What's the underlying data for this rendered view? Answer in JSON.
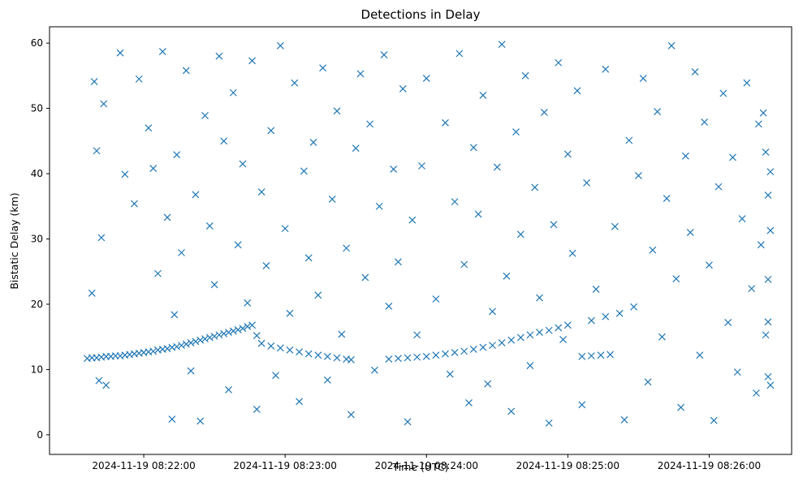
{
  "chart_data": {
    "type": "scatter",
    "title": "Detections in Delay",
    "xlabel": "Time (UTC)",
    "ylabel": "Bistatic Delay (km)",
    "x_range": [
      "2024-11-19 08:21:20",
      "2024-11-19 08:26:35"
    ],
    "ylim": [
      -3,
      62.5
    ],
    "x_ticks": [
      "2024-11-19 08:22:00",
      "2024-11-19 08:23:00",
      "2024-11-19 08:24:00",
      "2024-11-19 08:25:00",
      "2024-11-19 08:26:00"
    ],
    "y_ticks": [
      0,
      10,
      20,
      30,
      40,
      50,
      60
    ],
    "marker": "x",
    "color": "#1f77b4",
    "grid": false,
    "series": [
      {
        "points": [
          [
            "2024-11-19 08:21:36",
            11.7
          ],
          [
            "2024-11-19 08:21:38",
            11.8
          ],
          [
            "2024-11-19 08:21:40",
            11.8
          ],
          [
            "2024-11-19 08:21:42",
            11.9
          ],
          [
            "2024-11-19 08:21:44",
            12.0
          ],
          [
            "2024-11-19 08:21:46",
            12.0
          ],
          [
            "2024-11-19 08:21:48",
            12.1
          ],
          [
            "2024-11-19 08:21:50",
            12.1
          ],
          [
            "2024-11-19 08:21:52",
            12.2
          ],
          [
            "2024-11-19 08:21:54",
            12.3
          ],
          [
            "2024-11-19 08:21:56",
            12.4
          ],
          [
            "2024-11-19 08:21:58",
            12.5
          ],
          [
            "2024-11-19 08:22:00",
            12.6
          ],
          [
            "2024-11-19 08:22:02",
            12.7
          ],
          [
            "2024-11-19 08:22:04",
            12.8
          ],
          [
            "2024-11-19 08:22:06",
            13.0
          ],
          [
            "2024-11-19 08:22:08",
            13.1
          ],
          [
            "2024-11-19 08:22:10",
            13.2
          ],
          [
            "2024-11-19 08:22:12",
            13.4
          ],
          [
            "2024-11-19 08:22:14",
            13.5
          ],
          [
            "2024-11-19 08:22:16",
            13.7
          ],
          [
            "2024-11-19 08:22:18",
            13.9
          ],
          [
            "2024-11-19 08:22:20",
            14.1
          ],
          [
            "2024-11-19 08:22:22",
            14.3
          ],
          [
            "2024-11-19 08:22:24",
            14.5
          ],
          [
            "2024-11-19 08:22:26",
            14.7
          ],
          [
            "2024-11-19 08:22:28",
            14.9
          ],
          [
            "2024-11-19 08:22:30",
            15.1
          ],
          [
            "2024-11-19 08:22:32",
            15.3
          ],
          [
            "2024-11-19 08:22:34",
            15.5
          ],
          [
            "2024-11-19 08:22:36",
            15.7
          ],
          [
            "2024-11-19 08:22:38",
            15.9
          ],
          [
            "2024-11-19 08:22:40",
            16.1
          ],
          [
            "2024-11-19 08:22:42",
            16.3
          ],
          [
            "2024-11-19 08:22:44",
            16.6
          ],
          [
            "2024-11-19 08:22:46",
            16.8
          ],
          [
            "2024-11-19 08:22:48",
            15.2
          ],
          [
            "2024-11-19 08:22:50",
            14.0
          ],
          [
            "2024-11-19 08:22:54",
            13.6
          ],
          [
            "2024-11-19 08:22:58",
            13.3
          ],
          [
            "2024-11-19 08:23:02",
            13.0
          ],
          [
            "2024-11-19 08:23:06",
            12.7
          ],
          [
            "2024-11-19 08:23:10",
            12.4
          ],
          [
            "2024-11-19 08:23:14",
            12.2
          ],
          [
            "2024-11-19 08:23:18",
            12.0
          ],
          [
            "2024-11-19 08:23:22",
            11.8
          ],
          [
            "2024-11-19 08:23:26",
            11.6
          ],
          [
            "2024-11-19 08:23:28",
            11.5
          ],
          [
            "2024-11-19 08:23:44",
            11.6
          ],
          [
            "2024-11-19 08:23:48",
            11.7
          ],
          [
            "2024-11-19 08:23:52",
            11.8
          ],
          [
            "2024-11-19 08:23:56",
            11.9
          ],
          [
            "2024-11-19 08:24:00",
            12.0
          ],
          [
            "2024-11-19 08:24:04",
            12.2
          ],
          [
            "2024-11-19 08:24:08",
            12.4
          ],
          [
            "2024-11-19 08:24:12",
            12.6
          ],
          [
            "2024-11-19 08:24:16",
            12.8
          ],
          [
            "2024-11-19 08:24:20",
            13.1
          ],
          [
            "2024-11-19 08:24:24",
            13.4
          ],
          [
            "2024-11-19 08:24:28",
            13.7
          ],
          [
            "2024-11-19 08:24:32",
            14.1
          ],
          [
            "2024-11-19 08:24:36",
            14.5
          ],
          [
            "2024-11-19 08:24:40",
            14.9
          ],
          [
            "2024-11-19 08:24:44",
            15.3
          ],
          [
            "2024-11-19 08:24:48",
            15.7
          ],
          [
            "2024-11-19 08:24:52",
            16.0
          ],
          [
            "2024-11-19 08:24:56",
            16.4
          ],
          [
            "2024-11-19 08:25:00",
            16.8
          ],
          [
            "2024-11-19 08:25:06",
            12.0
          ],
          [
            "2024-11-19 08:25:10",
            12.1
          ],
          [
            "2024-11-19 08:25:14",
            12.2
          ],
          [
            "2024-11-19 08:25:18",
            12.3
          ],
          [
            "2024-11-19 08:25:10",
            17.5
          ],
          [
            "2024-11-19 08:25:16",
            18.1
          ],
          [
            "2024-11-19 08:25:22",
            18.6
          ],
          [
            "2024-11-19 08:21:38",
            21.7
          ],
          [
            "2024-11-19 08:21:39",
            54.1
          ],
          [
            "2024-11-19 08:21:40",
            43.5
          ],
          [
            "2024-11-19 08:21:41",
            8.3
          ],
          [
            "2024-11-19 08:21:42",
            30.2
          ],
          [
            "2024-11-19 08:21:43",
            50.7
          ],
          [
            "2024-11-19 08:21:44",
            7.6
          ],
          [
            "2024-11-19 08:21:50",
            58.5
          ],
          [
            "2024-11-19 08:21:52",
            39.9
          ],
          [
            "2024-11-19 08:21:56",
            35.4
          ],
          [
            "2024-11-19 08:21:58",
            54.5
          ],
          [
            "2024-11-19 08:22:02",
            47.0
          ],
          [
            "2024-11-19 08:22:04",
            40.8
          ],
          [
            "2024-11-19 08:22:06",
            24.7
          ],
          [
            "2024-11-19 08:22:08",
            58.7
          ],
          [
            "2024-11-19 08:22:10",
            33.3
          ],
          [
            "2024-11-19 08:22:12",
            2.4
          ],
          [
            "2024-11-19 08:22:13",
            18.4
          ],
          [
            "2024-11-19 08:22:14",
            42.9
          ],
          [
            "2024-11-19 08:22:16",
            27.9
          ],
          [
            "2024-11-19 08:22:18",
            55.8
          ],
          [
            "2024-11-19 08:22:20",
            9.8
          ],
          [
            "2024-11-19 08:22:22",
            36.8
          ],
          [
            "2024-11-19 08:22:24",
            2.1
          ],
          [
            "2024-11-19 08:22:26",
            48.9
          ],
          [
            "2024-11-19 08:22:28",
            32.0
          ],
          [
            "2024-11-19 08:22:30",
            23.0
          ],
          [
            "2024-11-19 08:22:32",
            58.0
          ],
          [
            "2024-11-19 08:22:34",
            45.0
          ],
          [
            "2024-11-19 08:22:36",
            6.9
          ],
          [
            "2024-11-19 08:22:38",
            52.4
          ],
          [
            "2024-11-19 08:22:40",
            29.1
          ],
          [
            "2024-11-19 08:22:42",
            41.5
          ],
          [
            "2024-11-19 08:22:44",
            20.2
          ],
          [
            "2024-11-19 08:22:46",
            57.3
          ],
          [
            "2024-11-19 08:22:48",
            3.9
          ],
          [
            "2024-11-19 08:22:50",
            37.2
          ],
          [
            "2024-11-19 08:22:52",
            25.9
          ],
          [
            "2024-11-19 08:22:54",
            46.6
          ],
          [
            "2024-11-19 08:22:56",
            9.1
          ],
          [
            "2024-11-19 08:22:58",
            59.6
          ],
          [
            "2024-11-19 08:23:00",
            31.6
          ],
          [
            "2024-11-19 08:23:02",
            18.6
          ],
          [
            "2024-11-19 08:23:04",
            53.9
          ],
          [
            "2024-11-19 08:23:06",
            5.1
          ],
          [
            "2024-11-19 08:23:08",
            40.4
          ],
          [
            "2024-11-19 08:23:10",
            27.1
          ],
          [
            "2024-11-19 08:23:12",
            44.8
          ],
          [
            "2024-11-19 08:23:14",
            21.4
          ],
          [
            "2024-11-19 08:23:16",
            56.2
          ],
          [
            "2024-11-19 08:23:18",
            8.4
          ],
          [
            "2024-11-19 08:23:20",
            36.1
          ],
          [
            "2024-11-19 08:23:22",
            49.6
          ],
          [
            "2024-11-19 08:23:24",
            15.4
          ],
          [
            "2024-11-19 08:23:26",
            28.6
          ],
          [
            "2024-11-19 08:23:28",
            3.1
          ],
          [
            "2024-11-19 08:23:30",
            43.9
          ],
          [
            "2024-11-19 08:23:32",
            55.3
          ],
          [
            "2024-11-19 08:23:34",
            24.1
          ],
          [
            "2024-11-19 08:23:36",
            47.6
          ],
          [
            "2024-11-19 08:23:38",
            9.9
          ],
          [
            "2024-11-19 08:23:40",
            35.0
          ],
          [
            "2024-11-19 08:23:42",
            58.2
          ],
          [
            "2024-11-19 08:23:44",
            19.7
          ],
          [
            "2024-11-19 08:23:46",
            40.7
          ],
          [
            "2024-11-19 08:23:48",
            26.5
          ],
          [
            "2024-11-19 08:23:50",
            53.0
          ],
          [
            "2024-11-19 08:23:52",
            2.0
          ],
          [
            "2024-11-19 08:23:54",
            32.9
          ],
          [
            "2024-11-19 08:23:56",
            15.3
          ],
          [
            "2024-11-19 08:23:58",
            41.2
          ],
          [
            "2024-11-19 08:24:00",
            54.6
          ],
          [
            "2024-11-19 08:24:04",
            20.8
          ],
          [
            "2024-11-19 08:24:08",
            47.8
          ],
          [
            "2024-11-19 08:24:10",
            9.3
          ],
          [
            "2024-11-19 08:24:12",
            35.7
          ],
          [
            "2024-11-19 08:24:14",
            58.4
          ],
          [
            "2024-11-19 08:24:16",
            26.1
          ],
          [
            "2024-11-19 08:24:18",
            4.9
          ],
          [
            "2024-11-19 08:24:20",
            44.0
          ],
          [
            "2024-11-19 08:24:22",
            33.8
          ],
          [
            "2024-11-19 08:24:24",
            52.0
          ],
          [
            "2024-11-19 08:24:26",
            7.8
          ],
          [
            "2024-11-19 08:24:28",
            18.9
          ],
          [
            "2024-11-19 08:24:30",
            41.0
          ],
          [
            "2024-11-19 08:24:32",
            59.8
          ],
          [
            "2024-11-19 08:24:34",
            24.3
          ],
          [
            "2024-11-19 08:24:36",
            3.6
          ],
          [
            "2024-11-19 08:24:38",
            46.4
          ],
          [
            "2024-11-19 08:24:40",
            30.7
          ],
          [
            "2024-11-19 08:24:42",
            55.0
          ],
          [
            "2024-11-19 08:24:44",
            10.6
          ],
          [
            "2024-11-19 08:24:46",
            37.9
          ],
          [
            "2024-11-19 08:24:48",
            21.0
          ],
          [
            "2024-11-19 08:24:50",
            49.4
          ],
          [
            "2024-11-19 08:24:52",
            1.8
          ],
          [
            "2024-11-19 08:24:54",
            32.2
          ],
          [
            "2024-11-19 08:24:56",
            57.0
          ],
          [
            "2024-11-19 08:24:58",
            14.6
          ],
          [
            "2024-11-19 08:25:00",
            43.0
          ],
          [
            "2024-11-19 08:25:02",
            27.8
          ],
          [
            "2024-11-19 08:25:04",
            52.7
          ],
          [
            "2024-11-19 08:25:06",
            4.6
          ],
          [
            "2024-11-19 08:25:08",
            38.6
          ],
          [
            "2024-11-19 08:25:12",
            22.3
          ],
          [
            "2024-11-19 08:25:16",
            56.0
          ],
          [
            "2024-11-19 08:25:20",
            31.9
          ],
          [
            "2024-11-19 08:25:24",
            2.3
          ],
          [
            "2024-11-19 08:25:26",
            45.1
          ],
          [
            "2024-11-19 08:25:28",
            19.6
          ],
          [
            "2024-11-19 08:25:30",
            39.7
          ],
          [
            "2024-11-19 08:25:32",
            54.6
          ],
          [
            "2024-11-19 08:25:34",
            8.1
          ],
          [
            "2024-11-19 08:25:36",
            28.3
          ],
          [
            "2024-11-19 08:25:38",
            49.5
          ],
          [
            "2024-11-19 08:25:40",
            15.0
          ],
          [
            "2024-11-19 08:25:42",
            36.2
          ],
          [
            "2024-11-19 08:25:44",
            59.6
          ],
          [
            "2024-11-19 08:25:46",
            23.9
          ],
          [
            "2024-11-19 08:25:48",
            4.2
          ],
          [
            "2024-11-19 08:25:50",
            42.7
          ],
          [
            "2024-11-19 08:25:52",
            31.0
          ],
          [
            "2024-11-19 08:25:54",
            55.6
          ],
          [
            "2024-11-19 08:25:56",
            12.2
          ],
          [
            "2024-11-19 08:25:58",
            47.9
          ],
          [
            "2024-11-19 08:26:00",
            26.0
          ],
          [
            "2024-11-19 08:26:02",
            2.2
          ],
          [
            "2024-11-19 08:26:04",
            38.0
          ],
          [
            "2024-11-19 08:26:06",
            52.3
          ],
          [
            "2024-11-19 08:26:08",
            17.2
          ],
          [
            "2024-11-19 08:26:10",
            42.5
          ],
          [
            "2024-11-19 08:26:12",
            9.6
          ],
          [
            "2024-11-19 08:26:14",
            33.1
          ],
          [
            "2024-11-19 08:26:16",
            53.9
          ],
          [
            "2024-11-19 08:26:18",
            22.4
          ],
          [
            "2024-11-19 08:26:20",
            6.4
          ],
          [
            "2024-11-19 08:26:21",
            47.6
          ],
          [
            "2024-11-19 08:26:22",
            29.1
          ],
          [
            "2024-11-19 08:26:23",
            49.3
          ],
          [
            "2024-11-19 08:26:24",
            15.3
          ],
          [
            "2024-11-19 08:26:24",
            43.3
          ],
          [
            "2024-11-19 08:26:25",
            8.9
          ],
          [
            "2024-11-19 08:26:25",
            17.3
          ],
          [
            "2024-11-19 08:26:25",
            23.8
          ],
          [
            "2024-11-19 08:26:25",
            36.7
          ],
          [
            "2024-11-19 08:26:26",
            40.3
          ],
          [
            "2024-11-19 08:26:26",
            31.3
          ],
          [
            "2024-11-19 08:26:26",
            7.6
          ]
        ]
      }
    ]
  }
}
